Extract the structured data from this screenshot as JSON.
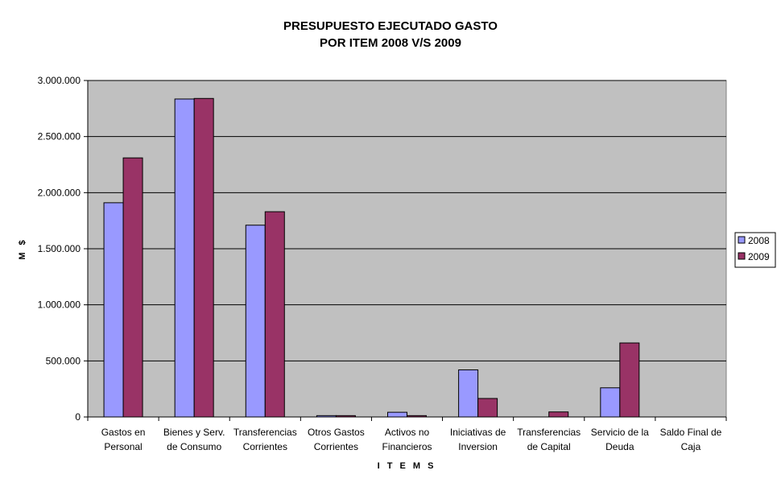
{
  "chart_data": {
    "type": "bar",
    "title_lines": [
      "PRESUPUESTO EJECUTADO GASTO",
      "POR ITEM   2008 V/S 2009"
    ],
    "xlabel": "I T E M S",
    "ylabel": "M $",
    "ylim": [
      0,
      3000000
    ],
    "yticks": [
      0,
      500000,
      1000000,
      1500000,
      2000000,
      2500000,
      3000000
    ],
    "ytick_labels": [
      "0",
      "500.000",
      "1.000.000",
      "1.500.000",
      "2.000.000",
      "2.500.000",
      "3.000.000"
    ],
    "categories": [
      [
        "Gastos en",
        "Personal"
      ],
      [
        "Bienes y Serv.",
        "de Consumo"
      ],
      [
        "Transferencias",
        "Corrientes"
      ],
      [
        "Otros Gastos",
        "Corrientes"
      ],
      [
        "Activos no",
        "Financieros"
      ],
      [
        "Iniciativas de",
        "Inversion"
      ],
      [
        "Transferencias",
        "de Capital"
      ],
      [
        "Servicio de la",
        "Deuda"
      ],
      [
        "Saldo Final de",
        "Caja"
      ]
    ],
    "series": [
      {
        "name": "2008",
        "color": "#9999ff",
        "values": [
          1910000,
          2835000,
          1710000,
          12000,
          42000,
          420000,
          0,
          260000,
          0
        ]
      },
      {
        "name": "2009",
        "color": "#993366",
        "values": [
          2310000,
          2840000,
          1830000,
          12000,
          12000,
          165000,
          45000,
          660000,
          0
        ]
      }
    ],
    "grid": true,
    "plot_background": "#c0c0c0",
    "legend_position": "right"
  }
}
